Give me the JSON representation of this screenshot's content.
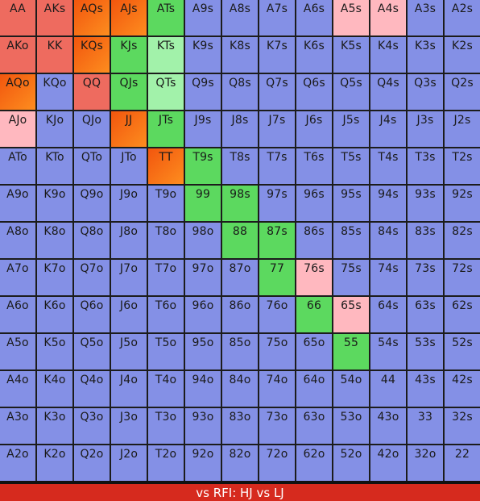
{
  "grid": {
    "rows": [
      [
        {
          "t": "AA",
          "c": "red"
        },
        {
          "t": "AKs",
          "c": "red"
        },
        {
          "t": "AQs",
          "c": "orange"
        },
        {
          "t": "AJs",
          "c": "orange"
        },
        {
          "t": "ATs",
          "c": "green"
        },
        {
          "t": "A9s",
          "c": "fold"
        },
        {
          "t": "A8s",
          "c": "fold"
        },
        {
          "t": "A7s",
          "c": "fold"
        },
        {
          "t": "A6s",
          "c": "fold"
        },
        {
          "t": "A5s",
          "c": "pink"
        },
        {
          "t": "A4s",
          "c": "pink"
        },
        {
          "t": "A3s",
          "c": "fold"
        },
        {
          "t": "A2s",
          "c": "fold"
        }
      ],
      [
        {
          "t": "AKo",
          "c": "red"
        },
        {
          "t": "KK",
          "c": "red"
        },
        {
          "t": "KQs",
          "c": "orange"
        },
        {
          "t": "KJs",
          "c": "green"
        },
        {
          "t": "KTs",
          "c": "lgreen"
        },
        {
          "t": "K9s",
          "c": "fold"
        },
        {
          "t": "K8s",
          "c": "fold"
        },
        {
          "t": "K7s",
          "c": "fold"
        },
        {
          "t": "K6s",
          "c": "fold"
        },
        {
          "t": "K5s",
          "c": "fold"
        },
        {
          "t": "K4s",
          "c": "fold"
        },
        {
          "t": "K3s",
          "c": "fold"
        },
        {
          "t": "K2s",
          "c": "fold"
        }
      ],
      [
        {
          "t": "AQo",
          "c": "orange"
        },
        {
          "t": "KQo",
          "c": "fold"
        },
        {
          "t": "QQ",
          "c": "red"
        },
        {
          "t": "QJs",
          "c": "green"
        },
        {
          "t": "QTs",
          "c": "lgreen"
        },
        {
          "t": "Q9s",
          "c": "fold"
        },
        {
          "t": "Q8s",
          "c": "fold"
        },
        {
          "t": "Q7s",
          "c": "fold"
        },
        {
          "t": "Q6s",
          "c": "fold"
        },
        {
          "t": "Q5s",
          "c": "fold"
        },
        {
          "t": "Q4s",
          "c": "fold"
        },
        {
          "t": "Q3s",
          "c": "fold"
        },
        {
          "t": "Q2s",
          "c": "fold"
        }
      ],
      [
        {
          "t": "AJo",
          "c": "pink"
        },
        {
          "t": "KJo",
          "c": "fold"
        },
        {
          "t": "QJo",
          "c": "fold"
        },
        {
          "t": "JJ",
          "c": "orange"
        },
        {
          "t": "JTs",
          "c": "green"
        },
        {
          "t": "J9s",
          "c": "fold"
        },
        {
          "t": "J8s",
          "c": "fold"
        },
        {
          "t": "J7s",
          "c": "fold"
        },
        {
          "t": "J6s",
          "c": "fold"
        },
        {
          "t": "J5s",
          "c": "fold"
        },
        {
          "t": "J4s",
          "c": "fold"
        },
        {
          "t": "J3s",
          "c": "fold"
        },
        {
          "t": "J2s",
          "c": "fold"
        }
      ],
      [
        {
          "t": "ATo",
          "c": "fold"
        },
        {
          "t": "KTo",
          "c": "fold"
        },
        {
          "t": "QTo",
          "c": "fold"
        },
        {
          "t": "JTo",
          "c": "fold"
        },
        {
          "t": "TT",
          "c": "orange"
        },
        {
          "t": "T9s",
          "c": "green"
        },
        {
          "t": "T8s",
          "c": "fold"
        },
        {
          "t": "T7s",
          "c": "fold"
        },
        {
          "t": "T6s",
          "c": "fold"
        },
        {
          "t": "T5s",
          "c": "fold"
        },
        {
          "t": "T4s",
          "c": "fold"
        },
        {
          "t": "T3s",
          "c": "fold"
        },
        {
          "t": "T2s",
          "c": "fold"
        }
      ],
      [
        {
          "t": "A9o",
          "c": "fold"
        },
        {
          "t": "K9o",
          "c": "fold"
        },
        {
          "t": "Q9o",
          "c": "fold"
        },
        {
          "t": "J9o",
          "c": "fold"
        },
        {
          "t": "T9o",
          "c": "fold"
        },
        {
          "t": "99",
          "c": "green"
        },
        {
          "t": "98s",
          "c": "green"
        },
        {
          "t": "97s",
          "c": "fold"
        },
        {
          "t": "96s",
          "c": "fold"
        },
        {
          "t": "95s",
          "c": "fold"
        },
        {
          "t": "94s",
          "c": "fold"
        },
        {
          "t": "93s",
          "c": "fold"
        },
        {
          "t": "92s",
          "c": "fold"
        }
      ],
      [
        {
          "t": "A8o",
          "c": "fold"
        },
        {
          "t": "K8o",
          "c": "fold"
        },
        {
          "t": "Q8o",
          "c": "fold"
        },
        {
          "t": "J8o",
          "c": "fold"
        },
        {
          "t": "T8o",
          "c": "fold"
        },
        {
          "t": "98o",
          "c": "fold"
        },
        {
          "t": "88",
          "c": "green"
        },
        {
          "t": "87s",
          "c": "green"
        },
        {
          "t": "86s",
          "c": "fold"
        },
        {
          "t": "85s",
          "c": "fold"
        },
        {
          "t": "84s",
          "c": "fold"
        },
        {
          "t": "83s",
          "c": "fold"
        },
        {
          "t": "82s",
          "c": "fold"
        }
      ],
      [
        {
          "t": "A7o",
          "c": "fold"
        },
        {
          "t": "K7o",
          "c": "fold"
        },
        {
          "t": "Q7o",
          "c": "fold"
        },
        {
          "t": "J7o",
          "c": "fold"
        },
        {
          "t": "T7o",
          "c": "fold"
        },
        {
          "t": "97o",
          "c": "fold"
        },
        {
          "t": "87o",
          "c": "fold"
        },
        {
          "t": "77",
          "c": "green"
        },
        {
          "t": "76s",
          "c": "pink"
        },
        {
          "t": "75s",
          "c": "fold"
        },
        {
          "t": "74s",
          "c": "fold"
        },
        {
          "t": "73s",
          "c": "fold"
        },
        {
          "t": "72s",
          "c": "fold"
        }
      ],
      [
        {
          "t": "A6o",
          "c": "fold"
        },
        {
          "t": "K6o",
          "c": "fold"
        },
        {
          "t": "Q6o",
          "c": "fold"
        },
        {
          "t": "J6o",
          "c": "fold"
        },
        {
          "t": "T6o",
          "c": "fold"
        },
        {
          "t": "96o",
          "c": "fold"
        },
        {
          "t": "86o",
          "c": "fold"
        },
        {
          "t": "76o",
          "c": "fold"
        },
        {
          "t": "66",
          "c": "green"
        },
        {
          "t": "65s",
          "c": "pink"
        },
        {
          "t": "64s",
          "c": "fold"
        },
        {
          "t": "63s",
          "c": "fold"
        },
        {
          "t": "62s",
          "c": "fold"
        }
      ],
      [
        {
          "t": "A5o",
          "c": "fold"
        },
        {
          "t": "K5o",
          "c": "fold"
        },
        {
          "t": "Q5o",
          "c": "fold"
        },
        {
          "t": "J5o",
          "c": "fold"
        },
        {
          "t": "T5o",
          "c": "fold"
        },
        {
          "t": "95o",
          "c": "fold"
        },
        {
          "t": "85o",
          "c": "fold"
        },
        {
          "t": "75o",
          "c": "fold"
        },
        {
          "t": "65o",
          "c": "fold"
        },
        {
          "t": "55",
          "c": "green"
        },
        {
          "t": "54s",
          "c": "fold"
        },
        {
          "t": "53s",
          "c": "fold"
        },
        {
          "t": "52s",
          "c": "fold"
        }
      ],
      [
        {
          "t": "A4o",
          "c": "fold"
        },
        {
          "t": "K4o",
          "c": "fold"
        },
        {
          "t": "Q4o",
          "c": "fold"
        },
        {
          "t": "J4o",
          "c": "fold"
        },
        {
          "t": "T4o",
          "c": "fold"
        },
        {
          "t": "94o",
          "c": "fold"
        },
        {
          "t": "84o",
          "c": "fold"
        },
        {
          "t": "74o",
          "c": "fold"
        },
        {
          "t": "64o",
          "c": "fold"
        },
        {
          "t": "54o",
          "c": "fold"
        },
        {
          "t": "44",
          "c": "fold"
        },
        {
          "t": "43s",
          "c": "fold"
        },
        {
          "t": "42s",
          "c": "fold"
        }
      ],
      [
        {
          "t": "A3o",
          "c": "fold"
        },
        {
          "t": "K3o",
          "c": "fold"
        },
        {
          "t": "Q3o",
          "c": "fold"
        },
        {
          "t": "J3o",
          "c": "fold"
        },
        {
          "t": "T3o",
          "c": "fold"
        },
        {
          "t": "93o",
          "c": "fold"
        },
        {
          "t": "83o",
          "c": "fold"
        },
        {
          "t": "73o",
          "c": "fold"
        },
        {
          "t": "63o",
          "c": "fold"
        },
        {
          "t": "53o",
          "c": "fold"
        },
        {
          "t": "43o",
          "c": "fold"
        },
        {
          "t": "33",
          "c": "fold"
        },
        {
          "t": "32s",
          "c": "fold"
        }
      ],
      [
        {
          "t": "A2o",
          "c": "fold"
        },
        {
          "t": "K2o",
          "c": "fold"
        },
        {
          "t": "Q2o",
          "c": "fold"
        },
        {
          "t": "J2o",
          "c": "fold"
        },
        {
          "t": "T2o",
          "c": "fold"
        },
        {
          "t": "92o",
          "c": "fold"
        },
        {
          "t": "82o",
          "c": "fold"
        },
        {
          "t": "72o",
          "c": "fold"
        },
        {
          "t": "62o",
          "c": "fold"
        },
        {
          "t": "52o",
          "c": "fold"
        },
        {
          "t": "42o",
          "c": "fold"
        },
        {
          "t": "32o",
          "c": "fold"
        },
        {
          "t": "22",
          "c": "fold"
        }
      ]
    ]
  },
  "colors": {
    "fold": "#8490e6",
    "green": "#5cd95f",
    "lgreen": "#a2f2aa",
    "pink": "#ffb8bf",
    "red": "#ee6b5f",
    "orange": "#fd8020",
    "footer": "#d62a1e"
  },
  "footer": {
    "label": "vs RFI: HJ vs LJ"
  }
}
